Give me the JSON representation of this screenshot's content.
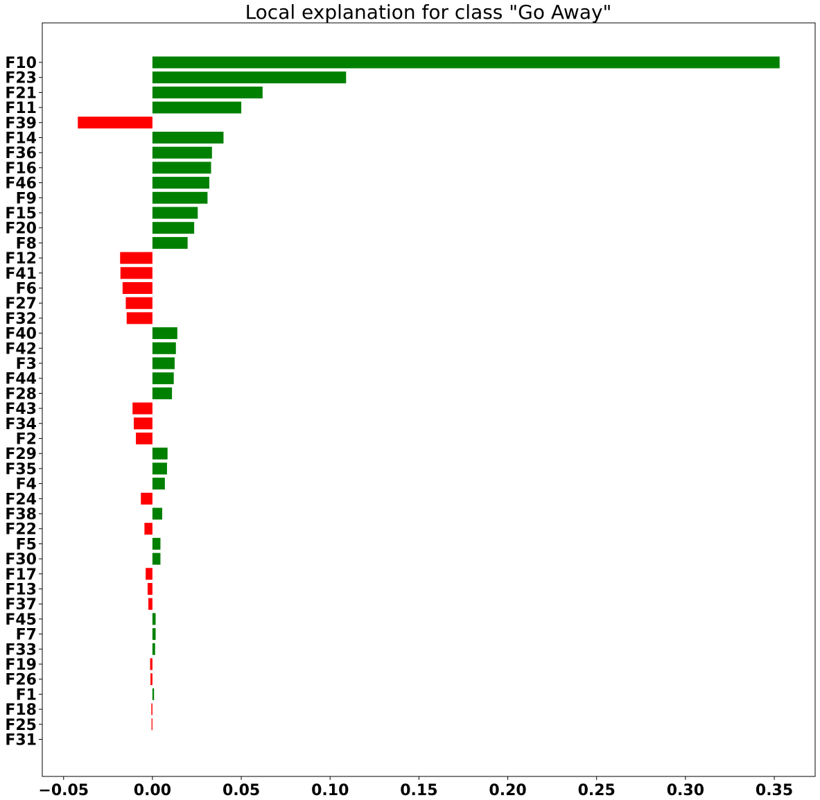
{
  "chart_data": {
    "type": "bar",
    "orientation": "horizontal",
    "title": "Local explanation for class \"Go Away\"",
    "xlabel": "",
    "ylabel": "",
    "xlim": [
      -0.062,
      0.373
    ],
    "xticks": [
      -0.05,
      0.0,
      0.05,
      0.1,
      0.15,
      0.2,
      0.25,
      0.3,
      0.35
    ],
    "xtick_labels": [
      "−0.05",
      "0.00",
      "0.05",
      "0.10",
      "0.15",
      "0.20",
      "0.25",
      "0.30",
      "0.35"
    ],
    "positive_color": "#008000",
    "negative_color": "#ff0000",
    "grid": false,
    "categories": [
      "F10",
      "F23",
      "F21",
      "F11",
      "F39",
      "F14",
      "F36",
      "F16",
      "F46",
      "F9",
      "F15",
      "F20",
      "F8",
      "F12",
      "F41",
      "F6",
      "F27",
      "F32",
      "F40",
      "F42",
      "F3",
      "F44",
      "F28",
      "F43",
      "F34",
      "F2",
      "F29",
      "F35",
      "F4",
      "F24",
      "F38",
      "F22",
      "F5",
      "F30",
      "F17",
      "F13",
      "F37",
      "F45",
      "F7",
      "F33",
      "F19",
      "F26",
      "F1",
      "F18",
      "F25",
      "F31"
    ],
    "values": [
      0.353,
      0.109,
      0.062,
      0.05,
      -0.042,
      0.04,
      0.0335,
      0.033,
      0.032,
      0.031,
      0.0255,
      0.0235,
      0.0198,
      -0.0182,
      -0.018,
      -0.0168,
      -0.015,
      -0.0145,
      0.014,
      0.0132,
      0.0125,
      0.012,
      0.011,
      -0.0112,
      -0.0105,
      -0.0093,
      0.0085,
      0.0082,
      0.007,
      -0.0065,
      0.0055,
      -0.0045,
      0.0045,
      0.0045,
      -0.0038,
      -0.0027,
      -0.0023,
      0.0018,
      0.0018,
      0.0015,
      -0.0013,
      -0.0011,
      0.0009,
      -0.0006,
      -0.0005,
      0.0
    ]
  }
}
